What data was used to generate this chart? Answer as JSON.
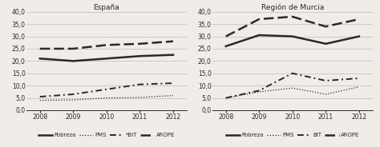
{
  "years": [
    2008,
    2009,
    2010,
    2011,
    2012
  ],
  "espana": {
    "title": "España",
    "pobreza": [
      21.0,
      20.0,
      21.0,
      22.0,
      22.5
    ],
    "pms": [
      4.0,
      4.2,
      5.0,
      5.2,
      6.0
    ],
    "bit": [
      5.5,
      6.5,
      8.5,
      10.5,
      11.0
    ],
    "arope": [
      25.0,
      25.0,
      26.5,
      27.0,
      28.0
    ]
  },
  "murcia": {
    "title": "Región de Murcia",
    "pobreza": [
      26.0,
      30.5,
      30.0,
      27.0,
      30.0
    ],
    "pms": [
      5.0,
      7.5,
      9.0,
      6.5,
      9.5
    ],
    "bit": [
      5.0,
      8.0,
      15.0,
      12.0,
      13.0
    ],
    "arope": [
      30.0,
      37.0,
      38.0,
      34.0,
      37.0
    ]
  },
  "ylim": [
    0,
    40
  ],
  "yticks": [
    0.0,
    5.0,
    10.0,
    15.0,
    20.0,
    25.0,
    30.0,
    35.0,
    40.0
  ],
  "ytick_labels": [
    "0,0",
    "5,0",
    "10,0",
    "15,0",
    "20,0",
    "25,0",
    "30,0",
    "35,0",
    "40,0"
  ],
  "color": "#2a2a2a",
  "bg_color": "#f0ede8",
  "grid_color": "#bbbbbb",
  "title_fontsize": 6.5,
  "tick_fontsize": 5.5,
  "legend_fontsize": 5.0
}
